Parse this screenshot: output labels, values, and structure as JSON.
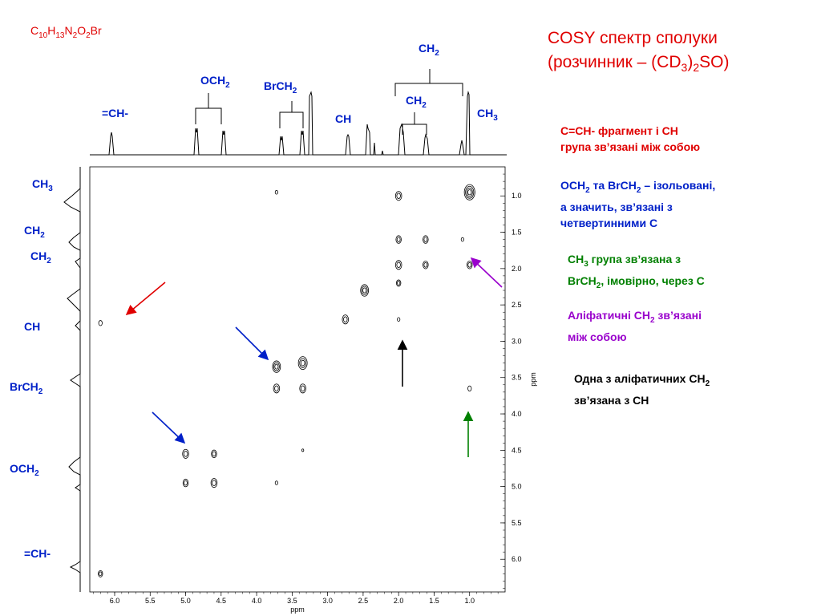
{
  "formula": {
    "parts": [
      "C",
      "10",
      "H",
      "13",
      "N",
      "2",
      "O",
      "2",
      "Br"
    ]
  },
  "title": {
    "line1": "COSY спектр сполуки",
    "line2_prefix": "(розчинник – (CD",
    "line2_sub1": "3",
    "line2_mid": ")",
    "line2_sub2": "2",
    "line2_suffix": "SO)"
  },
  "notes": {
    "red": {
      "line1": "C=CH- фрагмент і CH",
      "line2": "група зв’язані між собою"
    },
    "blue": {
      "line1a": "OCH",
      "line1b": "2",
      "line1c": " та BrCH",
      "line1d": "2",
      "line1e": " – ізольовані,",
      "line2": "а значить, зв’язані з",
      "line3": "четвертинними С"
    },
    "green": {
      "line1a": "CH",
      "line1b": "3",
      "line1c": " група зв’язана з",
      "line2a": "BrCH",
      "line2b": "2",
      "line2c": ", імовірно, через С"
    },
    "purple": {
      "line1a": "Аліфатичні CH",
      "line1b": "2",
      "line1c": " зв’язані",
      "line2": "між собою"
    },
    "black": {
      "line1a": "Одна з аліфатичних CH",
      "line1b": "2",
      "line2": "зв’язана з CH"
    }
  },
  "top_labels": {
    "ch_vinyl": "=CH-",
    "och2": "OCH",
    "brch2": "BrCH",
    "ch": "CH",
    "ch2_a": "CH",
    "ch2_b": "CH",
    "ch3": "CH",
    "sub2": "2",
    "sub3": "3"
  },
  "left_labels": {
    "ch3": "CH",
    "ch2_a": "CH",
    "ch2_b": "CH",
    "ch": "CH",
    "brch2": "BrCH",
    "och2": "OCH",
    "ch_vinyl": "=CH-"
  },
  "chart_data": {
    "type": "heatmap",
    "xlabel": "ppm",
    "ylabel": "ppm",
    "xlim": [
      6.35,
      0.5
    ],
    "ylim": [
      0.6,
      6.45
    ],
    "x_ticks": [
      "6.0",
      "5.5",
      "5.0",
      "4.5",
      "4.0",
      "3.5",
      "3.0",
      "2.5",
      "2.0",
      "1.5",
      "1.0"
    ],
    "y_ticks": [
      "1.0",
      "1.5",
      "2.0",
      "2.5",
      "3.0",
      "3.5",
      "4.0",
      "4.5",
      "5.0",
      "5.5",
      "6.0"
    ],
    "proton_shifts_ppm": {
      "=CH-": 6.2,
      "OCH2": [
        5.0,
        4.6
      ],
      "BrCH2": [
        3.7,
        3.35
      ],
      "CH": 2.75,
      "CH2_a": 2.0,
      "CH2_b": 1.62,
      "CH3": 1.05
    },
    "cross_peaks": [
      {
        "x": 6.2,
        "y": 2.75,
        "s": 4
      },
      {
        "x": 6.2,
        "y": 6.2,
        "s": 5
      },
      {
        "x": 5.0,
        "y": 4.55,
        "s": 7
      },
      {
        "x": 4.6,
        "y": 4.55,
        "s": 6
      },
      {
        "x": 5.0,
        "y": 4.95,
        "s": 6
      },
      {
        "x": 4.6,
        "y": 4.95,
        "s": 7
      },
      {
        "x": 3.72,
        "y": 0.95,
        "s": 3
      },
      {
        "x": 3.72,
        "y": 3.35,
        "s": 9
      },
      {
        "x": 3.72,
        "y": 3.65,
        "s": 7
      },
      {
        "x": 3.35,
        "y": 3.3,
        "s": 10
      },
      {
        "x": 3.35,
        "y": 3.65,
        "s": 7
      },
      {
        "x": 2.75,
        "y": 2.7,
        "s": 7
      },
      {
        "x": 2.48,
        "y": 2.3,
        "s": 9
      },
      {
        "x": 2.0,
        "y": 1.0,
        "s": 7
      },
      {
        "x": 2.0,
        "y": 1.6,
        "s": 6
      },
      {
        "x": 2.0,
        "y": 1.95,
        "s": 7
      },
      {
        "x": 2.0,
        "y": 2.2,
        "s": 5
      },
      {
        "x": 2.0,
        "y": 2.7,
        "s": 3
      },
      {
        "x": 1.62,
        "y": 1.6,
        "s": 6
      },
      {
        "x": 1.62,
        "y": 1.95,
        "s": 6
      },
      {
        "x": 1.1,
        "y": 1.6,
        "s": 3
      },
      {
        "x": 1.0,
        "y": 1.95,
        "s": 6
      },
      {
        "x": 1.0,
        "y": 0.95,
        "s": 12
      },
      {
        "x": 1.0,
        "y": 3.65,
        "s": 4
      },
      {
        "x": 3.72,
        "y": 4.95,
        "s": 3
      },
      {
        "x": 3.35,
        "y": 4.5,
        "s": 2
      }
    ]
  }
}
